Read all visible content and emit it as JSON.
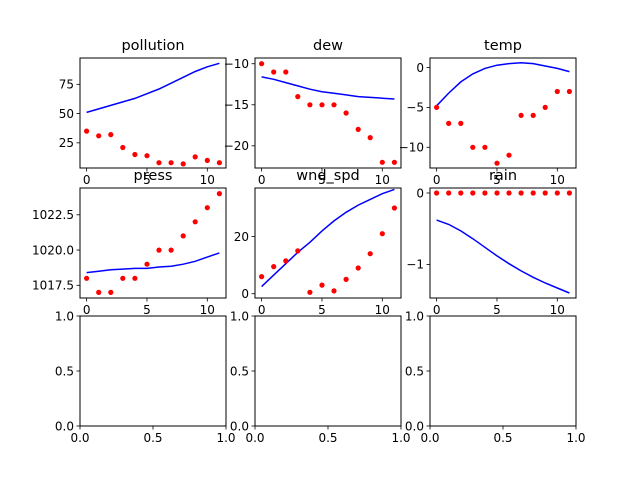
{
  "colors": {
    "line": "#0000ff",
    "points": "#ff0000",
    "axes": "#000000"
  },
  "chart_data": [
    {
      "type": "line",
      "title": "pollution",
      "xlim": [
        -0.55,
        11.55
      ],
      "ylim": [
        3.5,
        97.5
      ],
      "xticks": [
        0,
        5,
        10
      ],
      "xticklabels": [
        "0",
        "5",
        "10"
      ],
      "yticks": [
        25,
        50,
        75
      ],
      "yticklabels": [
        "25",
        "50",
        "75"
      ],
      "series": [
        {
          "kind": "line",
          "x": [
            0,
            1,
            2,
            3,
            4,
            5,
            6,
            7,
            8,
            9,
            10,
            11
          ],
          "y": [
            51,
            54,
            57,
            60,
            63,
            67,
            71,
            76,
            81,
            86,
            90,
            93
          ]
        },
        {
          "kind": "scatter",
          "x": [
            0,
            1,
            2,
            3,
            4,
            5,
            6,
            7,
            8,
            9,
            10,
            11
          ],
          "y": [
            35,
            31,
            32,
            21,
            15,
            14,
            8,
            8,
            7,
            13,
            10,
            8
          ]
        }
      ]
    },
    {
      "type": "line",
      "title": "dew",
      "xlim": [
        -0.55,
        11.55
      ],
      "ylim": [
        -22.7,
        -9.3
      ],
      "xticks": [
        0,
        5,
        10
      ],
      "xticklabels": [
        "0",
        "5",
        "10"
      ],
      "yticks": [
        -10,
        -15,
        -20
      ],
      "yticklabels": [
        "−10",
        "−15",
        "−20"
      ],
      "series": [
        {
          "kind": "line",
          "x": [
            0,
            1,
            2,
            3,
            4,
            5,
            6,
            7,
            8,
            9,
            10,
            11
          ],
          "y": [
            -11.6,
            -11.9,
            -12.3,
            -12.7,
            -13.1,
            -13.4,
            -13.6,
            -13.8,
            -14.0,
            -14.1,
            -14.2,
            -14.3
          ]
        },
        {
          "kind": "scatter",
          "x": [
            0,
            1,
            2,
            3,
            4,
            5,
            6,
            7,
            8,
            9,
            10,
            11
          ],
          "y": [
            -10,
            -11,
            -11,
            -14,
            -15,
            -15,
            -15,
            -16,
            -18,
            -19,
            -22,
            -22
          ]
        }
      ]
    },
    {
      "type": "line",
      "title": "temp",
      "xlim": [
        -0.55,
        11.55
      ],
      "ylim": [
        -12.6,
        1.2
      ],
      "xticks": [
        0,
        5,
        10
      ],
      "xticklabels": [
        "0",
        "5",
        "10"
      ],
      "yticks": [
        0,
        -5,
        -10
      ],
      "yticklabels": [
        "0",
        "−5",
        "−10"
      ],
      "series": [
        {
          "kind": "line",
          "x": [
            0,
            1,
            2,
            3,
            4,
            5,
            6,
            7,
            8,
            9,
            10,
            11
          ],
          "y": [
            -4.8,
            -3.2,
            -1.8,
            -0.8,
            -0.1,
            0.3,
            0.5,
            0.6,
            0.5,
            0.2,
            -0.1,
            -0.5
          ]
        },
        {
          "kind": "scatter",
          "x": [
            0,
            1,
            2,
            3,
            4,
            5,
            6,
            7,
            8,
            9,
            10,
            11
          ],
          "y": [
            -5,
            -7,
            -7,
            -10,
            -10,
            -12,
            -11,
            -6,
            -6,
            -5,
            -3,
            -3
          ]
        }
      ]
    },
    {
      "type": "line",
      "title": "press",
      "xlim": [
        -0.55,
        11.55
      ],
      "ylim": [
        1016.6,
        1024.4
      ],
      "xticks": [
        0,
        5,
        10
      ],
      "xticklabels": [
        "0",
        "5",
        "10"
      ],
      "yticks": [
        1017.5,
        1020.0,
        1022.5
      ],
      "yticklabels": [
        "1017.5",
        "1020.0",
        "1022.5"
      ],
      "series": [
        {
          "kind": "line",
          "x": [
            0,
            1,
            2,
            3,
            4,
            5,
            6,
            7,
            8,
            9,
            10,
            11
          ],
          "y": [
            1018.4,
            1018.5,
            1018.6,
            1018.65,
            1018.7,
            1018.7,
            1018.8,
            1018.85,
            1019.0,
            1019.2,
            1019.5,
            1019.8
          ]
        },
        {
          "kind": "scatter",
          "x": [
            0,
            1,
            2,
            3,
            4,
            5,
            6,
            7,
            8,
            9,
            10,
            11
          ],
          "y": [
            1018,
            1017,
            1017,
            1018,
            1018,
            1019,
            1020,
            1020,
            1021,
            1022,
            1023,
            1024
          ]
        }
      ]
    },
    {
      "type": "line",
      "title": "wnd_spd",
      "xlim": [
        -0.55,
        11.55
      ],
      "ylim": [
        -1.5,
        37
      ],
      "xticks": [
        0,
        5,
        10
      ],
      "xticklabels": [
        "0",
        "5",
        "10"
      ],
      "yticks": [
        0,
        20
      ],
      "yticklabels": [
        "0",
        "20"
      ],
      "series": [
        {
          "kind": "line",
          "x": [
            0,
            1,
            2,
            3,
            4,
            5,
            6,
            7,
            8,
            9,
            10,
            11
          ],
          "y": [
            2.5,
            6.5,
            10.5,
            14.5,
            18,
            22,
            25.5,
            28.5,
            31,
            33,
            35,
            36.5
          ]
        },
        {
          "kind": "scatter",
          "x": [
            0,
            1,
            2,
            3,
            4,
            5,
            6,
            7,
            8,
            9,
            10,
            11
          ],
          "y": [
            6,
            9.5,
            11.5,
            15,
            0.5,
            3,
            1,
            5,
            9,
            14,
            21,
            30
          ]
        }
      ]
    },
    {
      "type": "line",
      "title": "rain",
      "xlim": [
        -0.55,
        11.55
      ],
      "ylim": [
        -1.47,
        0.07
      ],
      "xticks": [
        0,
        5,
        10
      ],
      "xticklabels": [
        "0",
        "5",
        "10"
      ],
      "yticks": [
        0,
        -1
      ],
      "yticklabels": [
        "0",
        "−1"
      ],
      "series": [
        {
          "kind": "line",
          "x": [
            0,
            1,
            2,
            3,
            4,
            5,
            6,
            7,
            8,
            9,
            10,
            11
          ],
          "y": [
            -0.38,
            -0.44,
            -0.53,
            -0.64,
            -0.76,
            -0.88,
            -0.99,
            -1.09,
            -1.18,
            -1.26,
            -1.33,
            -1.4
          ]
        },
        {
          "kind": "scatter",
          "x": [
            0,
            1,
            2,
            3,
            4,
            5,
            6,
            7,
            8,
            9,
            10,
            11
          ],
          "y": [
            0,
            0,
            0,
            0,
            0,
            0,
            0,
            0,
            0,
            0,
            0,
            0
          ]
        }
      ]
    },
    {
      "type": "line",
      "title": "",
      "xlim": [
        0,
        1
      ],
      "ylim": [
        0,
        1
      ],
      "xticks": [
        0,
        0.5,
        1
      ],
      "xticklabels": [
        "0.0",
        "0.5",
        "1.0"
      ],
      "yticks": [
        0,
        0.5,
        1
      ],
      "yticklabels": [
        "0.0",
        "0.5",
        "1.0"
      ],
      "series": []
    },
    {
      "type": "line",
      "title": "",
      "xlim": [
        0,
        1
      ],
      "ylim": [
        0,
        1
      ],
      "xticks": [
        0,
        0.5,
        1
      ],
      "xticklabels": [
        "0.0",
        "0.5",
        "1.0"
      ],
      "yticks": [
        0,
        0.5,
        1
      ],
      "yticklabels": [
        "0.0",
        "0.5",
        "1.0"
      ],
      "series": []
    },
    {
      "type": "line",
      "title": "",
      "xlim": [
        0,
        1
      ],
      "ylim": [
        0,
        1
      ],
      "xticks": [
        0,
        0.5,
        1
      ],
      "xticklabels": [
        "0.0",
        "0.5",
        "1.0"
      ],
      "yticks": [
        0,
        0.5,
        1
      ],
      "yticklabels": [
        "0.0",
        "0.5",
        "1.0"
      ],
      "series": []
    }
  ]
}
